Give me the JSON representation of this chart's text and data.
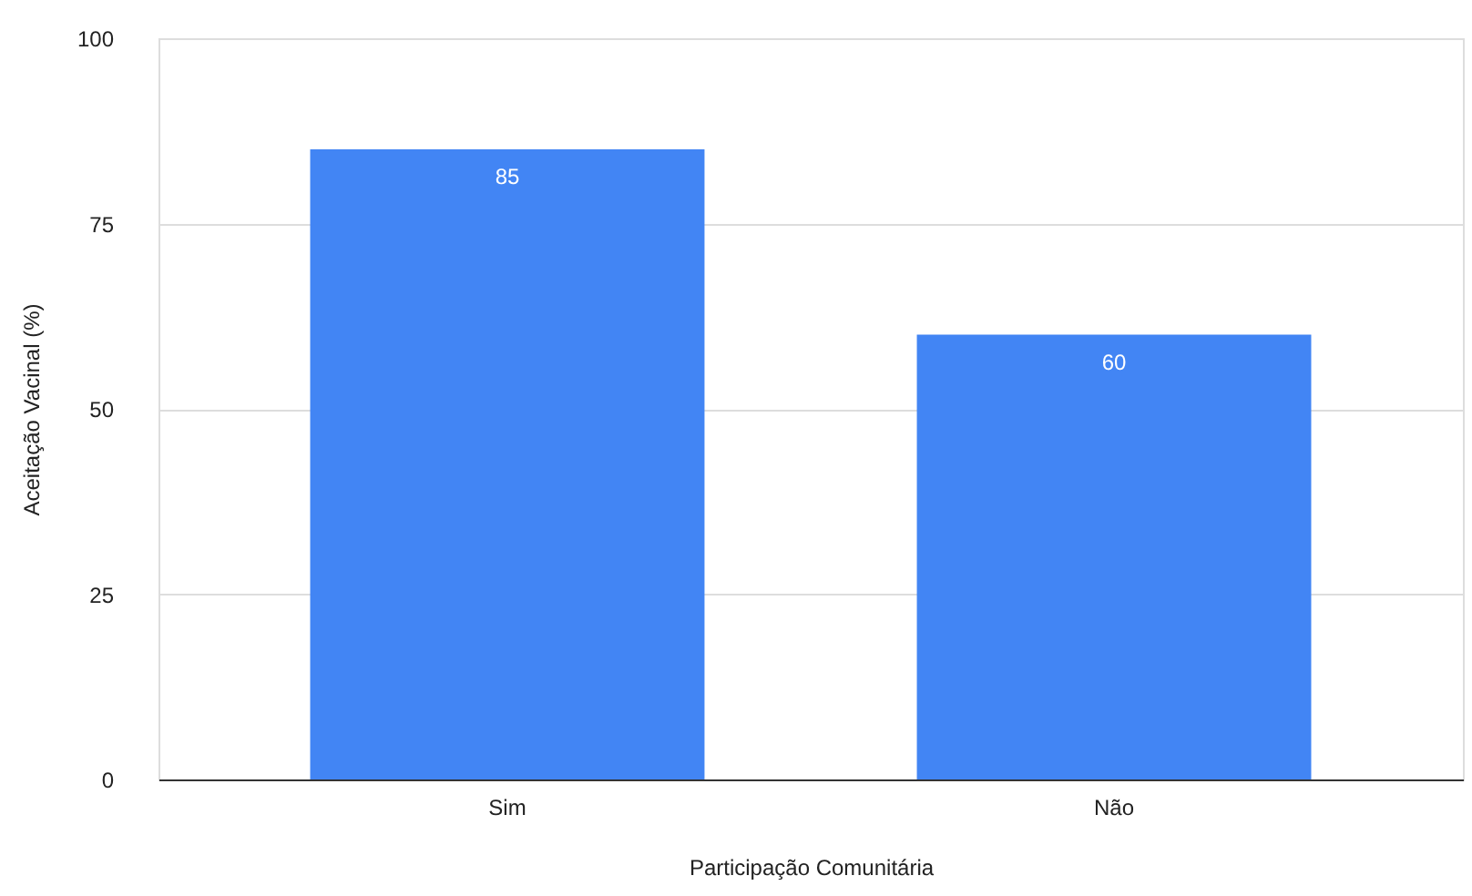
{
  "chart_data": {
    "type": "bar",
    "xlabel": "Participação Comunitária",
    "ylabel": "Aceitação Vacinal (%)",
    "categories": [
      "Sim",
      "Não"
    ],
    "values": [
      85,
      60
    ],
    "color": "#4285f4",
    "ylim": [
      0,
      100
    ],
    "yticks": [
      0,
      25,
      50,
      75,
      100
    ],
    "grid": "y",
    "data_labels": true
  }
}
